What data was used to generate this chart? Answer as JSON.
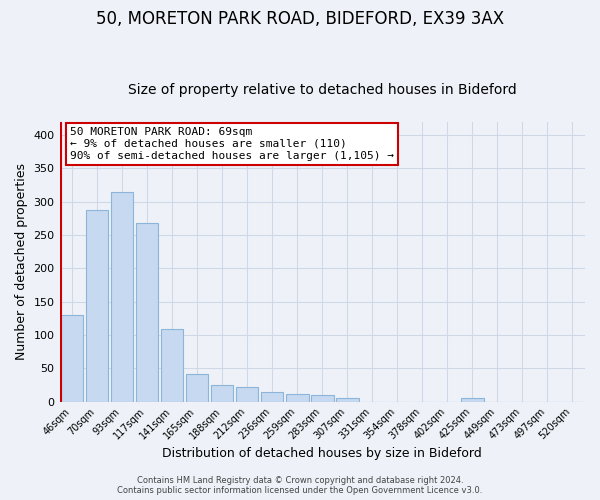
{
  "title1": "50, MORETON PARK ROAD, BIDEFORD, EX39 3AX",
  "title2": "Size of property relative to detached houses in Bideford",
  "xlabel": "Distribution of detached houses by size in Bideford",
  "ylabel": "Number of detached properties",
  "bar_labels": [
    "46sqm",
    "70sqm",
    "93sqm",
    "117sqm",
    "141sqm",
    "165sqm",
    "188sqm",
    "212sqm",
    "236sqm",
    "259sqm",
    "283sqm",
    "307sqm",
    "331sqm",
    "354sqm",
    "378sqm",
    "402sqm",
    "425sqm",
    "449sqm",
    "473sqm",
    "497sqm",
    "520sqm"
  ],
  "bar_heights": [
    130,
    287,
    314,
    268,
    109,
    41,
    25,
    22,
    14,
    11,
    10,
    5,
    0,
    0,
    0,
    0,
    5,
    0,
    0,
    0,
    0
  ],
  "bar_color": "#c6d9f0",
  "bar_edge_color": "#8db4d9",
  "highlight_line_color": "#cc0000",
  "ylim": [
    0,
    420
  ],
  "yticks": [
    0,
    50,
    100,
    150,
    200,
    250,
    300,
    350,
    400
  ],
  "annotation_line1": "50 MORETON PARK ROAD: 69sqm",
  "annotation_line2": "← 9% of detached houses are smaller (110)",
  "annotation_line3": "90% of semi-detached houses are larger (1,105) →",
  "footer_line1": "Contains HM Land Registry data © Crown copyright and database right 2024.",
  "footer_line2": "Contains public sector information licensed under the Open Government Licence v3.0.",
  "background_color": "#eef2f8",
  "plot_background": "#eef2f8",
  "grid_color": "#d0d8e8",
  "title1_fontsize": 12,
  "title2_fontsize": 10
}
